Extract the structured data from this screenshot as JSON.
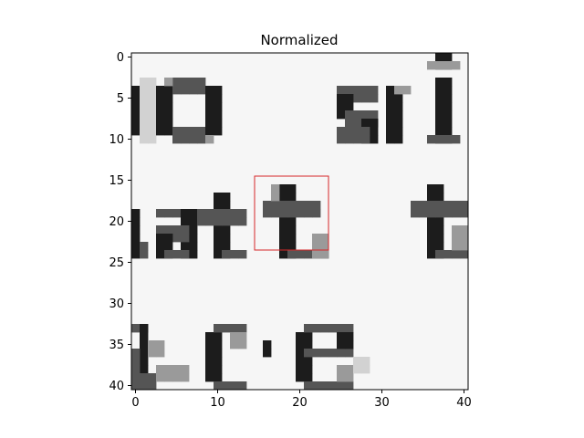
{
  "chart_data": {
    "type": "heatmap",
    "title": "Normalized",
    "xlabel": "",
    "ylabel": "",
    "colormap": "gray",
    "x_range": [
      -0.5,
      40.5
    ],
    "y_range": [
      -0.5,
      40.5
    ],
    "x_ticks": [
      0,
      10,
      20,
      30,
      40
    ],
    "y_ticks": [
      0,
      5,
      10,
      15,
      20,
      25,
      30,
      35,
      40
    ],
    "grid": false,
    "content": "grayscale zoom of printed text",
    "rectangle": {
      "x0": 14.5,
      "y0": 14.5,
      "x1": 23.5,
      "y1": 23.5,
      "color": "#d62728"
    }
  }
}
